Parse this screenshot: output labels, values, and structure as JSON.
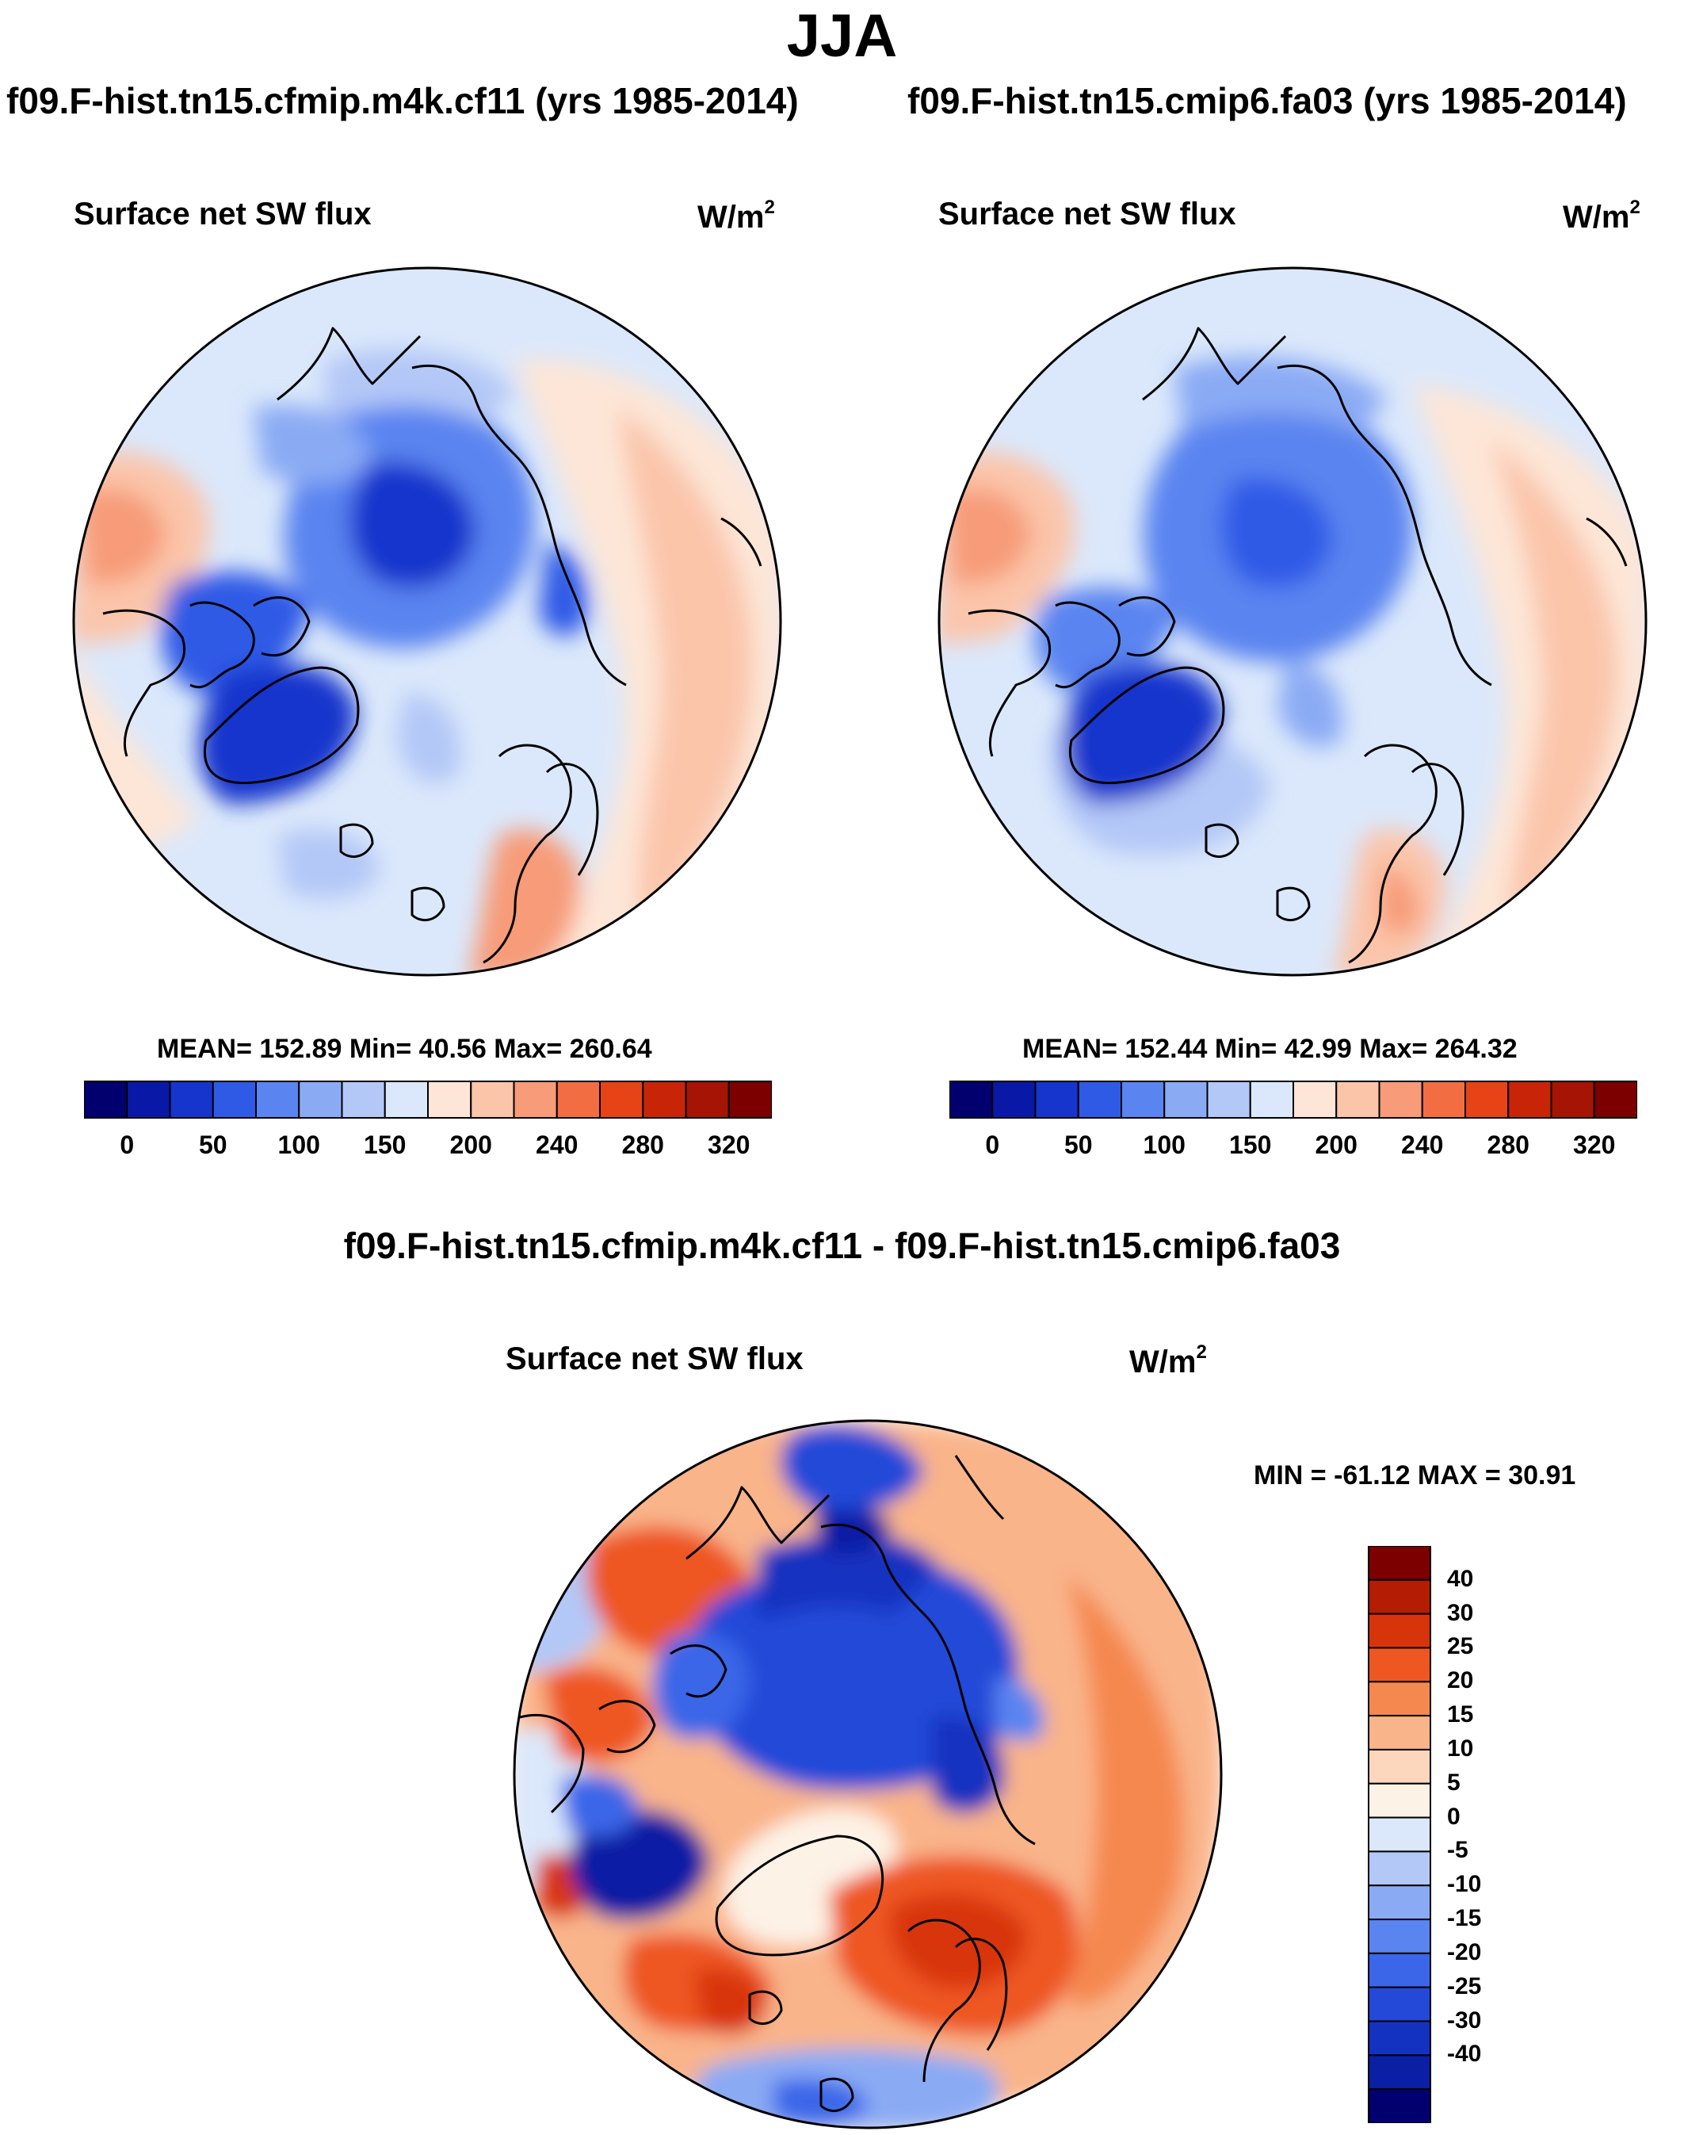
{
  "page_title": "JJA",
  "panels": [
    {
      "run": "f09.F-hist.tn15.cfmip.m4k.cf11 (yrs 1985-2014)",
      "variable": "Surface net SW flux",
      "unit_base": "W/m",
      "unit_exp": "2",
      "stats": "MEAN= 152.89  Min=  40.56  Max= 260.64"
    },
    {
      "run": "f09.F-hist.tn15.cmip6.fa03 (yrs 1985-2014)",
      "variable": "Surface net SW flux",
      "unit_base": "W/m",
      "unit_exp": "2",
      "stats": "MEAN= 152.44  Min=  42.99  Max= 264.32"
    }
  ],
  "diff_panel": {
    "title": "f09.F-hist.tn15.cfmip.m4k.cf11 - f09.F-hist.tn15.cmip6.fa03",
    "variable": "Surface net SW flux",
    "unit_base": "W/m",
    "unit_exp": "2",
    "stats": "MIN = -61.12 MAX =  30.91"
  },
  "colorbar_main": {
    "colors": [
      "#02006e",
      "#0a18a8",
      "#1535cc",
      "#2f5ae6",
      "#5a84f0",
      "#8aaaf4",
      "#b4c8f7",
      "#dbe8fb",
      "#fde6d7",
      "#fbc5aa",
      "#f79b78",
      "#f26d42",
      "#e64317",
      "#c82508",
      "#a51404",
      "#7c0000"
    ],
    "tick_labels": [
      "0",
      "50",
      "100",
      "150",
      "200",
      "240",
      "280",
      "320"
    ]
  },
  "colorbar_diff": {
    "colors": [
      "#7c0000",
      "#b51c04",
      "#d8340c",
      "#ee5722",
      "#f5884f",
      "#f9b48a",
      "#fcd6bd",
      "#fdf2e6",
      "#dbe8fb",
      "#b4c8f7",
      "#8aaaf4",
      "#5a84f0",
      "#3b66e8",
      "#2448d8",
      "#1432c0",
      "#0a1fa4",
      "#02006e"
    ],
    "tick_labels": [
      "40",
      "30",
      "25",
      "20",
      "15",
      "10",
      "5",
      "0",
      "-5",
      "-10",
      "-15",
      "-20",
      "-25",
      "-30",
      "-40"
    ]
  }
}
